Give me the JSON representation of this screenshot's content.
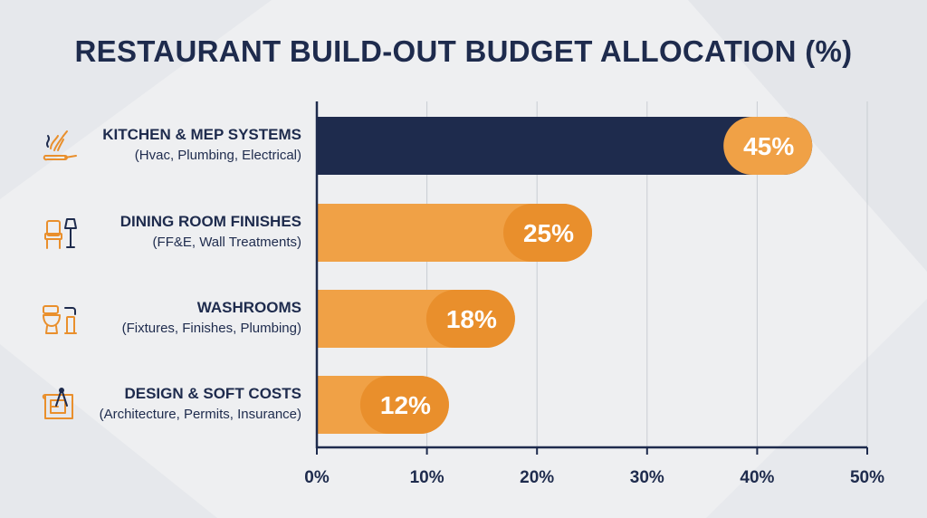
{
  "title": "RESTAURANT BUILD-OUT BUDGET ALLOCATION (%)",
  "colors": {
    "navy": "#1e2b4d",
    "orange": "#f0a146",
    "orange_dark": "#e98f2c",
    "grid": "#c9cdd3",
    "background": "#eeeff1"
  },
  "chart_data": {
    "type": "bar",
    "orientation": "horizontal",
    "title": "RESTAURANT BUILD-OUT BUDGET ALLOCATION (%)",
    "xlim": [
      0,
      50
    ],
    "xticks": [
      "0%",
      "10%",
      "20%",
      "30%",
      "40%",
      "50%"
    ],
    "grid": true,
    "categories": [
      {
        "name": "KITCHEN & MEP SYSTEMS",
        "sub": "(Hvac, Plumbing, Electrical)",
        "icon": "whisk-pan-icon",
        "value": 45,
        "label": "45%"
      },
      {
        "name": "DINING ROOM FINISHES",
        "sub": "(FF&E, Wall Treatments)",
        "icon": "chair-lamp-icon",
        "value": 25,
        "label": "25%"
      },
      {
        "name": "WASHROOMS",
        "sub": "(Fixtures, Finishes, Plumbing)",
        "icon": "toilet-faucet-icon",
        "value": 18,
        "label": "18%"
      },
      {
        "name": "DESIGN & SOFT COSTS",
        "sub": "(Architecture, Permits, Insurance)",
        "icon": "blueprint-compass-icon",
        "value": 12,
        "label": "12%"
      }
    ]
  }
}
